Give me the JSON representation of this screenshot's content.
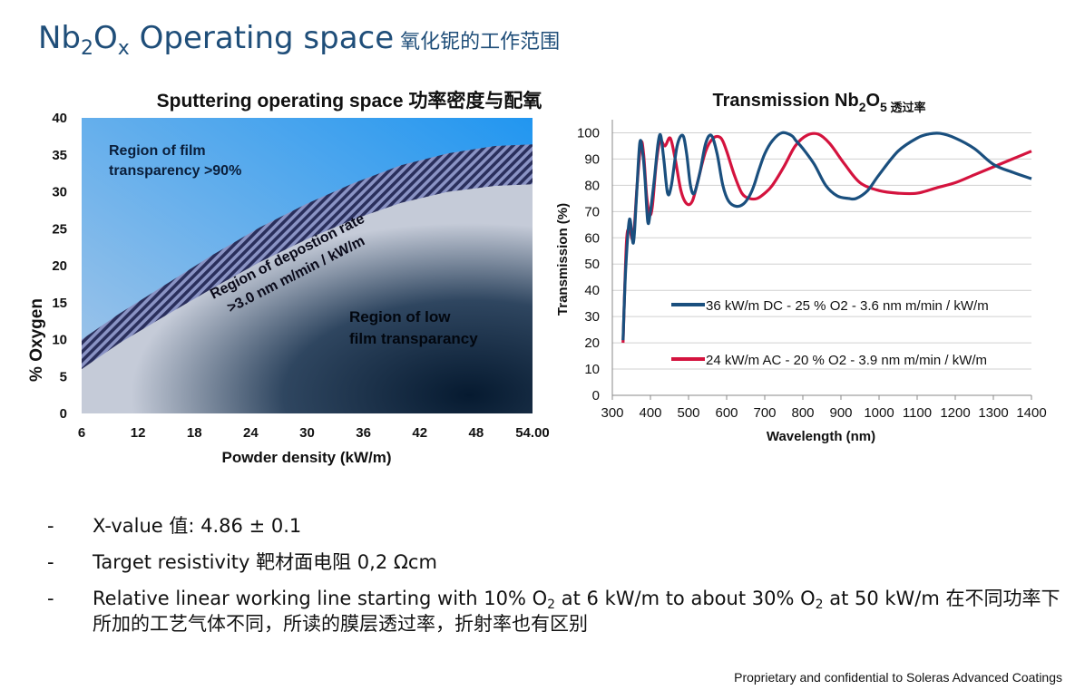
{
  "slide": {
    "title_base": "Nb",
    "title_sub1": "2",
    "title_mid": "O",
    "title_sub2": "x",
    "title_text": " Operating space",
    "title_cn": " 氧化铌的工作范围"
  },
  "chart_data": [
    {
      "type": "area",
      "title": "Sputtering operating space 功率密度与配氧",
      "xlabel": "Powder density (kW/m)",
      "ylabel": "% Oxygen",
      "xlim": [
        6,
        54
      ],
      "ylim": [
        0,
        40
      ],
      "x_ticks": [
        "6",
        "12",
        "18",
        "24",
        "30",
        "36",
        "42",
        "48",
        "54.00"
      ],
      "y_ticks": [
        "0",
        "5",
        "10",
        "15",
        "20",
        "25",
        "30",
        "35",
        "40"
      ],
      "regions": [
        {
          "name": "Region of film transparency >90%",
          "lines": [
            "Region of film",
            "transparency >90%"
          ],
          "color": "#3d95e8"
        },
        {
          "name": "Region of depostion rate >3.0 nm m/min / kW/m",
          "lines": [
            "Region of depostion rate",
            ">3.0 nm m/min / kW/m"
          ],
          "color": "#2a2f5c"
        },
        {
          "name": "Region of low film transparancy",
          "lines": [
            "Region of low",
            "film transparancy"
          ],
          "color": "#0d2540"
        }
      ],
      "upper_boundary": {
        "x": [
          6,
          10,
          15,
          20,
          25,
          30,
          35,
          40,
          45,
          50,
          54
        ],
        "y": [
          10,
          13.5,
          17.5,
          21.5,
          25.2,
          28.4,
          31.2,
          33.6,
          35.2,
          36.2,
          36.4
        ]
      },
      "lower_boundary": {
        "x": [
          6,
          10,
          15,
          20,
          25,
          30,
          35,
          40,
          45,
          50,
          54
        ],
        "y": [
          6,
          9.5,
          13.3,
          17,
          20.5,
          23.6,
          26.3,
          28.5,
          30,
          30.8,
          31
        ]
      }
    },
    {
      "type": "line",
      "title_base": "Transmission Nb",
      "title_sub1": "2",
      "title_mid": "O",
      "title_sub2": "5",
      "title_cn": " 透过率",
      "xlabel": "Wavelength (nm)",
      "ylabel": "Transmission (%)",
      "xlim": [
        300,
        1400
      ],
      "ylim": [
        0,
        105
      ],
      "x_ticks": [
        "300",
        "400",
        "500",
        "600",
        "700",
        "800",
        "900",
        "1000",
        "1100",
        "1200",
        "1300",
        "1400"
      ],
      "y_ticks": [
        "0",
        "10",
        "20",
        "30",
        "40",
        "50",
        "60",
        "70",
        "80",
        "90",
        "100"
      ],
      "grid": true,
      "series": [
        {
          "name": "36 kW/m DC - 25 % O2 - 3.6 nm m/min / kW/m",
          "color": "#1a4f7e",
          "x": [
            328,
            335,
            345,
            355,
            362,
            372,
            380,
            386,
            393,
            400,
            410,
            420,
            427,
            435,
            445,
            455,
            470,
            485,
            495,
            505,
            515,
            530,
            545,
            560,
            575,
            590,
            605,
            625,
            645,
            660,
            672,
            685,
            700,
            720,
            745,
            770,
            782,
            800,
            830,
            860,
            890,
            920,
            940,
            970,
            1000,
            1050,
            1100,
            1130,
            1160,
            1200,
            1250,
            1300,
            1350,
            1400
          ],
          "y": [
            21,
            48,
            67,
            58,
            72,
            96,
            92,
            82,
            66,
            70,
            82,
            96,
            99,
            90,
            77,
            80,
            95,
            99,
            92,
            80,
            77,
            85,
            96,
            99,
            92,
            80,
            74,
            72,
            73,
            76,
            80,
            86,
            92,
            97,
            100,
            99,
            97,
            94,
            88,
            80,
            76,
            75,
            75,
            78,
            84,
            93,
            98,
            99.5,
            99.8,
            98,
            94,
            88,
            85,
            82.5
          ]
        },
        {
          "name": "24 kW/m AC - 20 % O2 - 3.9 nm m/min / kW/m",
          "color": "#d4133e",
          "x": [
            328,
            337,
            345,
            355,
            365,
            375,
            382,
            390,
            398,
            405,
            415,
            425,
            438,
            452,
            465,
            480,
            495,
            510,
            525,
            545,
            565,
            585,
            600,
            620,
            640,
            660,
            680,
            700,
            720,
            750,
            780,
            810,
            840,
            870,
            910,
            950,
            1000,
            1050,
            1100,
            1150,
            1200,
            1250,
            1300,
            1350,
            1400
          ],
          "y": [
            20,
            58,
            63,
            60,
            80,
            96,
            92,
            76,
            69,
            72,
            88,
            97,
            95,
            98,
            90,
            78,
            73,
            74,
            82,
            93,
            98,
            98,
            93,
            84,
            77,
            75,
            75,
            77,
            80,
            87,
            95,
            99,
            99.5,
            96,
            88,
            81,
            78,
            77,
            77,
            79,
            81,
            84,
            87,
            90,
            93
          ]
        }
      ]
    }
  ],
  "bullets": [
    {
      "dash": "-",
      "text": "X-value 值: 4.86 ± 0.1"
    },
    {
      "dash": "-",
      "text": "Target resistivity 靶材面电阻  0,2 Ωcm"
    },
    {
      "dash": "-",
      "part1": "Relative linear working line starting with 10% O",
      "sub1": "2",
      "part2": " at 6 kW/m to about 30% O",
      "sub2": "2",
      "part3": " at 50 kW/m 在不同功率下所加的工艺气体不同，所读的膜层透过率，折射率也有区别"
    }
  ],
  "footer": "Proprietary and confidential to Soleras Advanced Coatings"
}
